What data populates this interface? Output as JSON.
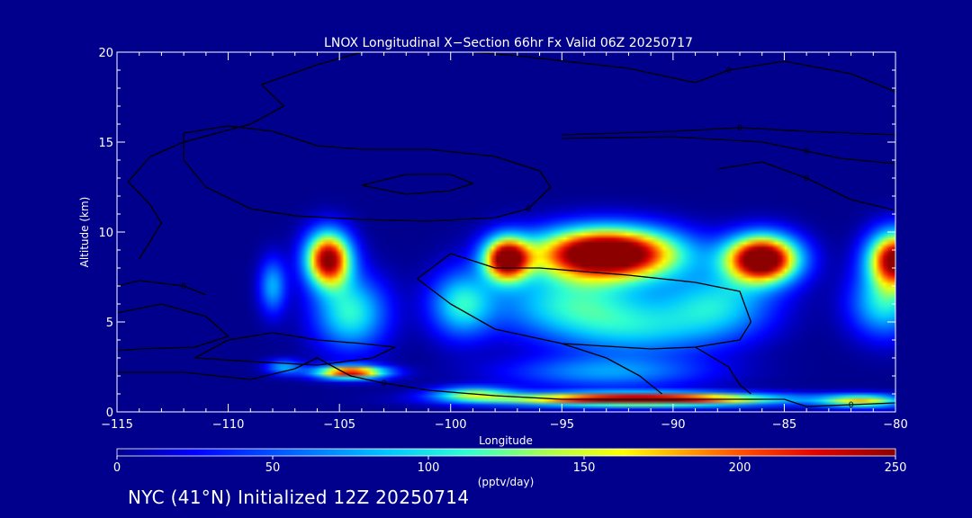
{
  "chart_data": {
    "type": "heatmap",
    "title": "LNOX Longitudinal X−Section 66hr  Fx Valid 06Z 20250717",
    "xlabel": "Longitude",
    "ylabel": "Altitude (km)",
    "xlim": [
      -115,
      -80
    ],
    "ylim": [
      0,
      20
    ],
    "x_ticks": [
      {
        "value": -115,
        "label": "−115"
      },
      {
        "value": -110,
        "label": "−110"
      },
      {
        "value": -105,
        "label": "−105"
      },
      {
        "value": -100,
        "label": "−100"
      },
      {
        "value": -95,
        "label": "−95"
      },
      {
        "value": -90,
        "label": "−90"
      },
      {
        "value": -85,
        "label": "−85"
      },
      {
        "value": -80,
        "label": "−80"
      }
    ],
    "y_ticks": [
      {
        "value": 0,
        "label": "0"
      },
      {
        "value": 5,
        "label": "5"
      },
      {
        "value": 10,
        "label": "10"
      },
      {
        "value": 15,
        "label": "15"
      },
      {
        "value": 20,
        "label": "20"
      }
    ],
    "colorbar": {
      "label": "(pptv/day)",
      "min": 0,
      "max": 250,
      "ticks": [
        {
          "value": 0,
          "label": "0"
        },
        {
          "value": 50,
          "label": "50"
        },
        {
          "value": 100,
          "label": "100"
        },
        {
          "value": 150,
          "label": "150"
        },
        {
          "value": 200,
          "label": "200"
        },
        {
          "value": 250,
          "label": "250"
        }
      ]
    },
    "lnox_field": {
      "units": "pptv/day",
      "blobs": [
        {
          "lon": -105.5,
          "alt": 8.5,
          "value": 255,
          "dlon": 1.0,
          "dalt": 1.5
        },
        {
          "lon": -104.5,
          "alt": 5.5,
          "value": 110,
          "dlon": 1.6,
          "dalt": 2.0
        },
        {
          "lon": -108.0,
          "alt": 7.0,
          "value": 80,
          "dlon": 0.6,
          "dalt": 1.5
        },
        {
          "lon": -99.5,
          "alt": 6.0,
          "value": 100,
          "dlon": 1.4,
          "dalt": 1.8
        },
        {
          "lon": -97.5,
          "alt": 8.5,
          "value": 250,
          "dlon": 1.0,
          "dalt": 1.2
        },
        {
          "lon": -93.0,
          "alt": 8.8,
          "value": 320,
          "dlon": 3.2,
          "dalt": 1.4
        },
        {
          "lon": -94.5,
          "alt": 6.0,
          "value": 100,
          "dlon": 3.5,
          "dalt": 1.8
        },
        {
          "lon": -91.5,
          "alt": 4.5,
          "value": 70,
          "dlon": 3.5,
          "dalt": 1.5
        },
        {
          "lon": -86.0,
          "alt": 8.5,
          "value": 300,
          "dlon": 1.6,
          "dalt": 1.3
        },
        {
          "lon": -88.0,
          "alt": 6.0,
          "value": 90,
          "dlon": 2.5,
          "dalt": 1.8
        },
        {
          "lon": -80.0,
          "alt": 8.5,
          "value": 260,
          "dlon": 1.2,
          "dalt": 1.5
        },
        {
          "lon": -80.5,
          "alt": 6.0,
          "value": 100,
          "dlon": 1.5,
          "dalt": 1.8
        },
        {
          "lon": -104.5,
          "alt": 2.2,
          "value": 230,
          "dlon": 1.6,
          "dalt": 0.35
        },
        {
          "lon": -91.5,
          "alt": 0.7,
          "value": 280,
          "dlon": 6.0,
          "dalt": 0.35
        },
        {
          "lon": -99.0,
          "alt": 1.0,
          "value": 120,
          "dlon": 1.8,
          "dalt": 0.4
        },
        {
          "lon": -81.5,
          "alt": 0.6,
          "value": 160,
          "dlon": 1.8,
          "dalt": 0.35
        },
        {
          "lon": -93.0,
          "alt": 2.2,
          "value": 70,
          "dlon": 4.5,
          "dalt": 0.9
        },
        {
          "lon": -107.5,
          "alt": 2.5,
          "value": 80,
          "dlon": 0.8,
          "dalt": 0.4
        }
      ]
    },
    "contours": [
      {
        "label": "0",
        "points": [
          [
            -115,
            7.0
          ],
          [
            -114,
            7.3
          ],
          [
            -112,
            7.0
          ],
          [
            -111,
            6.5
          ]
        ]
      },
      {
        "label": "0",
        "points": [
          [
            -115,
            2.2
          ],
          [
            -112,
            2.2
          ],
          [
            -109,
            1.8
          ],
          [
            -107,
            2.4
          ],
          [
            -106,
            3.0
          ],
          [
            -104.5,
            2.0
          ],
          [
            -103,
            1.6
          ],
          [
            -101,
            1.2
          ],
          [
            -98,
            0.9
          ],
          [
            -95,
            0.7
          ],
          [
            -90,
            0.7
          ],
          [
            -85,
            0.7
          ],
          [
            -84,
            0.3
          ]
        ]
      },
      {
        "label": "0",
        "points": [
          [
            -84,
            0.3
          ],
          [
            -82,
            0.4
          ],
          [
            -80,
            0.5
          ]
        ]
      },
      {
        "label": "",
        "points": [
          [
            -115,
            5.5
          ],
          [
            -113,
            6.0
          ],
          [
            -111,
            5.3
          ],
          [
            -110,
            4.2
          ],
          [
            -111.5,
            3.6
          ],
          [
            -114,
            3.5
          ],
          [
            -115,
            3.4
          ]
        ]
      },
      {
        "label": "",
        "points": [
          [
            -111.5,
            3.0
          ],
          [
            -110,
            4.0
          ],
          [
            -108,
            4.4
          ],
          [
            -106,
            4.0
          ],
          [
            -104,
            3.8
          ],
          [
            -102.5,
            3.6
          ],
          [
            -103.5,
            3.0
          ],
          [
            -106,
            2.6
          ],
          [
            -109,
            2.8
          ],
          [
            -111.5,
            3.0
          ]
        ]
      },
      {
        "label": "",
        "points": [
          [
            -100,
            8.8
          ],
          [
            -98,
            8.0
          ],
          [
            -96,
            8.0
          ],
          [
            -92,
            7.6
          ],
          [
            -89,
            7.2
          ],
          [
            -87,
            6.7
          ],
          [
            -86.5,
            5.0
          ],
          [
            -87,
            4.0
          ],
          [
            -89,
            3.6
          ],
          [
            -91,
            3.5
          ],
          [
            -95,
            3.8
          ],
          [
            -98,
            4.6
          ],
          [
            -100,
            6.0
          ],
          [
            -101.5,
            7.4
          ],
          [
            -100,
            8.8
          ]
        ]
      },
      {
        "label": "",
        "points": [
          [
            -89,
            3.6
          ],
          [
            -87.5,
            2.5
          ],
          [
            -87,
            1.5
          ],
          [
            -86.5,
            1.0
          ]
        ]
      },
      {
        "label": "",
        "points": [
          [
            -95,
            3.8
          ],
          [
            -93,
            3.0
          ],
          [
            -91.5,
            2.0
          ],
          [
            -90.5,
            1.0
          ]
        ]
      },
      {
        "label": "0",
        "points": [
          [
            -112,
            15.5
          ],
          [
            -110,
            15.9
          ],
          [
            -108,
            15.6
          ],
          [
            -106,
            14.8
          ],
          [
            -104,
            14.6
          ],
          [
            -101,
            14.6
          ],
          [
            -98,
            14.2
          ],
          [
            -96,
            13.4
          ],
          [
            -95.5,
            12.5
          ],
          [
            -96.5,
            11.3
          ],
          [
            -98,
            10.8
          ],
          [
            -101,
            10.6
          ],
          [
            -104,
            10.7
          ],
          [
            -107,
            10.9
          ],
          [
            -109,
            11.3
          ],
          [
            -111,
            12.5
          ],
          [
            -112,
            14.0
          ],
          [
            -112,
            15.5
          ]
        ]
      },
      {
        "label": "",
        "points": [
          [
            -104,
            12.6
          ],
          [
            -102,
            13.2
          ],
          [
            -100,
            13.2
          ],
          [
            -99,
            12.7
          ],
          [
            -100,
            12.3
          ],
          [
            -102,
            12.1
          ],
          [
            -104,
            12.6
          ]
        ]
      },
      {
        "label": "",
        "points": [
          [
            -114,
            8.5
          ],
          [
            -113,
            10.5
          ],
          [
            -113.5,
            11.5
          ],
          [
            -114.5,
            12.8
          ],
          [
            -113.5,
            14.2
          ],
          [
            -112,
            15.0
          ],
          [
            -109,
            16.0
          ],
          [
            -107.5,
            17.0
          ],
          [
            -108.5,
            18.2
          ],
          [
            -106,
            19.3
          ],
          [
            -104,
            20.0
          ]
        ]
      },
      {
        "label": "0",
        "points": [
          [
            -99,
            20.0
          ],
          [
            -97,
            19.8
          ],
          [
            -92,
            19.1
          ],
          [
            -89,
            18.3
          ],
          [
            -87.5,
            19.0
          ],
          [
            -85,
            19.5
          ],
          [
            -82,
            18.8
          ],
          [
            -80,
            17.8
          ]
        ]
      },
      {
        "label": "0",
        "points": [
          [
            -95,
            15.4
          ],
          [
            -90,
            15.6
          ],
          [
            -87,
            15.8
          ],
          [
            -84,
            15.6
          ],
          [
            -80,
            15.4
          ]
        ]
      },
      {
        "label": "0",
        "points": [
          [
            -95,
            15.2
          ],
          [
            -90,
            15.3
          ],
          [
            -86,
            15.0
          ],
          [
            -84,
            14.5
          ],
          [
            -82.5,
            14.1
          ],
          [
            -80,
            13.8
          ]
        ]
      },
      {
        "label": "0",
        "points": [
          [
            -88,
            13.5
          ],
          [
            -86,
            13.9
          ],
          [
            -84,
            13.0
          ],
          [
            -82,
            11.8
          ],
          [
            -80,
            11.2
          ]
        ]
      }
    ]
  },
  "footer_text": "NYC (41°N) Initialized 12Z 20250714"
}
